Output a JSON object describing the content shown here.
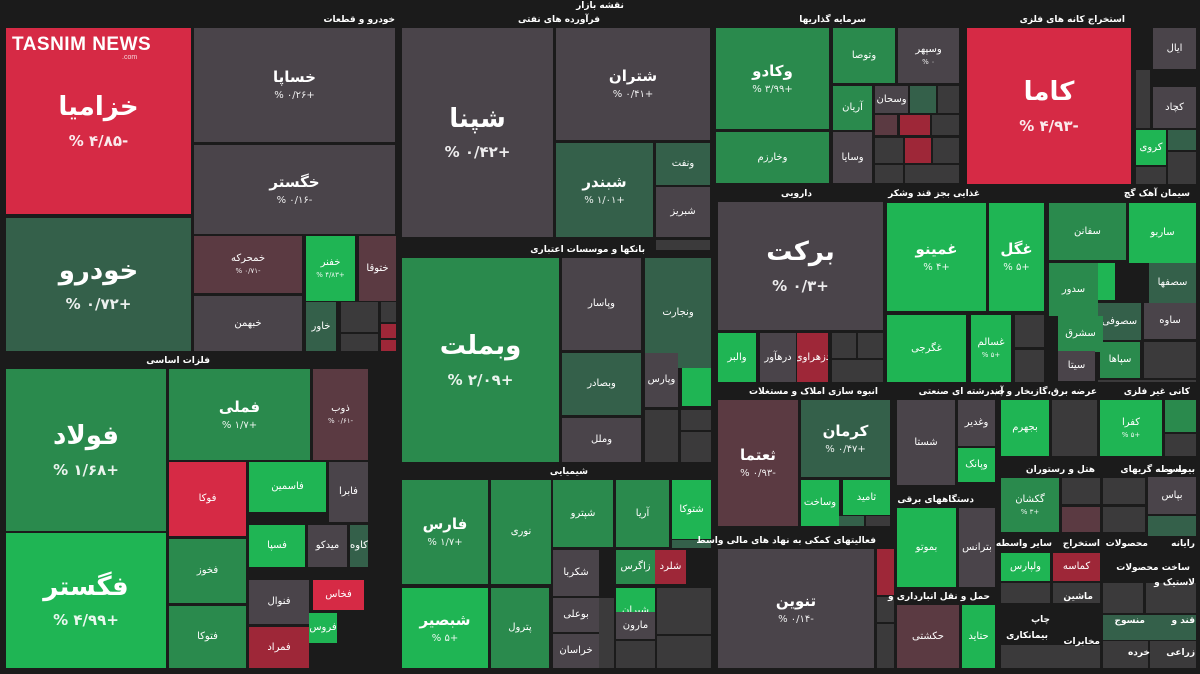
{
  "title": "نقشه بازار",
  "logo": {
    "text": "TASNIM NEWS",
    "sub": ".com"
  },
  "colors": {
    "neutral": "#4a444a",
    "pos_strong": "#1fb554",
    "pos_mid": "#2a8a4d",
    "pos_weak": "#34604a",
    "neg_strong": "#d62a45",
    "neg_mid": "#9e2738",
    "neg_weak": "#5b3a42",
    "background": "#1b1b1b"
  },
  "sectors": [
    "خودرو و قطعات",
    "فرآورده های نفتی",
    "سرمایه گذاریها",
    "استخراج کانه های فلزی",
    "فلزات اساسی",
    "بانکها و موسسات اعتباری",
    "دارویی",
    "غذایی بجز قند وشکر",
    "سیمان آهک گچ",
    "انبوه سازی املاک و مستغلات",
    "چندرشته ای صنعتی",
    "عرضه برق،گازبخار و آب",
    "کانی غیر فلزی",
    "شیمیایی",
    "فعالیتهای کمکی به نهاد های مالی واسط",
    "دستگاههای برقی",
    "هتل و رستوران",
    "واسطه گریهای",
    "بیمه و",
    "حمل و نقل انبارداری و",
    "رایانه",
    "محصولات",
    "استخراج",
    "سایر واسطه",
    "لاستیک و",
    "منسوج",
    "قند و",
    "زراعی",
    "خرده",
    "مخابرات",
    "چاپ",
    "ماشین",
    "بیمانکاری",
    "ساخت محصولات"
  ],
  "chart_data": {
    "type": "treemap",
    "title": "نقشه بازار",
    "unit": "%",
    "items": [
      {
        "sector": "خودرو و قطعات",
        "name": "خزامیا",
        "change": -4.85,
        "label": "-۴/۸۵ %"
      },
      {
        "sector": "خودرو و قطعات",
        "name": "خساپا",
        "change": 0.26,
        "label": "+۰/۲۶ %"
      },
      {
        "sector": "خودرو و قطعات",
        "name": "خگستر",
        "change": -0.16,
        "label": "-۰/۱۶ %"
      },
      {
        "sector": "خودرو و قطعات",
        "name": "خودرو",
        "change": 0.72,
        "label": "+۰/۷۲ %"
      },
      {
        "sector": "خودرو و قطعات",
        "name": "خمحرکه",
        "change": -0.71,
        "label": "-۰/۷۱ %"
      },
      {
        "sector": "خودرو و قطعات",
        "name": "خفنر",
        "change": 4.83,
        "label": "+۴/۸۳ %"
      },
      {
        "sector": "خودرو و قطعات",
        "name": "ختوقا",
        "change": -1.0,
        "label": ""
      },
      {
        "sector": "خودرو و قطعات",
        "name": "خبهمن",
        "change": 0.1,
        "label": ""
      },
      {
        "sector": "خودرو و قطعات",
        "name": "خاور",
        "change": 1.1,
        "label": ""
      },
      {
        "sector": "فرآورده های نفتی",
        "name": "شپنا",
        "change": 0.42,
        "label": "+۰/۴۲ %"
      },
      {
        "sector": "فرآورده های نفتی",
        "name": "شتران",
        "change": 0.41,
        "label": "+۰/۴۱ %"
      },
      {
        "sector": "فرآورده های نفتی",
        "name": "شبندر",
        "change": 1.01,
        "label": "+۱/۰۱ %"
      },
      {
        "sector": "فرآورده های نفتی",
        "name": "ونفت",
        "change": 1.2,
        "label": ""
      },
      {
        "sector": "فرآورده های نفتی",
        "name": "شبریز",
        "change": 0.1,
        "label": ""
      },
      {
        "sector": "سرمایه گذاریها",
        "name": "وکادو",
        "change": 3.99,
        "label": "+۳/۹۹ %"
      },
      {
        "sector": "سرمایه گذاریها",
        "name": "وتوصا",
        "change": 2.0,
        "label": ""
      },
      {
        "sector": "سرمایه گذاریها",
        "name": "وسپهر",
        "change": 0.0,
        "label": "۰ %"
      },
      {
        "sector": "سرمایه گذاریها",
        "name": "وخارزم",
        "change": 3.0,
        "label": ""
      },
      {
        "sector": "سرمایه گذاریها",
        "name": "آریان",
        "change": 2.9,
        "label": ""
      },
      {
        "sector": "سرمایه گذاریها",
        "name": "وسحان",
        "change": 0.1,
        "label": ""
      },
      {
        "sector": "سرمایه گذاریها",
        "name": "وسایا",
        "change": 0.3,
        "label": ""
      },
      {
        "sector": "استخراج کانه های فلزی",
        "name": "کاما",
        "change": -4.93,
        "label": "-۴/۹۳ %"
      },
      {
        "sector": "استخراج کانه های فلزی",
        "name": "ایال",
        "change": -0.2,
        "label": ""
      },
      {
        "sector": "استخراج کانه های فلزی",
        "name": "کچاد",
        "change": 0.1,
        "label": ""
      },
      {
        "sector": "استخراج کانه های فلزی",
        "name": "کروی",
        "change": 4.5,
        "label": ""
      },
      {
        "sector": "فلزات اساسی",
        "name": "فولاد",
        "change": 1.68,
        "label": "+۱/۶۸ %"
      },
      {
        "sector": "فلزات اساسی",
        "name": "فگستر",
        "change": 4.99,
        "label": "+۴/۹۹ %"
      },
      {
        "sector": "فلزات اساسی",
        "name": "فملی",
        "change": 1.7,
        "label": "+۱/۷ %"
      },
      {
        "sector": "فلزات اساسی",
        "name": "ذوب",
        "change": -0.61,
        "label": "-۰/۶۱ %"
      },
      {
        "sector": "فلزات اساسی",
        "name": "فوکا",
        "change": -4.99,
        "label": ""
      },
      {
        "sector": "فلزات اساسی",
        "name": "فاسمین",
        "change": 4.9,
        "label": ""
      },
      {
        "sector": "فلزات اساسی",
        "name": "فابرا",
        "change": 0.1,
        "label": ""
      },
      {
        "sector": "فلزات اساسی",
        "name": "فخوز",
        "change": 2.8,
        "label": ""
      },
      {
        "sector": "فلزات اساسی",
        "name": "فسپا",
        "change": 4.0,
        "label": ""
      },
      {
        "sector": "فلزات اساسی",
        "name": "میدکو",
        "change": 0.1,
        "label": ""
      },
      {
        "sector": "فلزات اساسی",
        "name": "کاوه",
        "change": 1.0,
        "label": ""
      },
      {
        "sector": "فلزات اساسی",
        "name": "فخاس",
        "change": -4.0,
        "label": ""
      },
      {
        "sector": "فلزات اساسی",
        "name": "فروس",
        "change": 4.0,
        "label": ""
      },
      {
        "sector": "فلزات اساسی",
        "name": "فنوال",
        "change": 0.0,
        "label": ""
      },
      {
        "sector": "فلزات اساسی",
        "name": "فمراد",
        "change": -1.6,
        "label": ""
      },
      {
        "sector": "فلزات اساسی",
        "name": "فتوکا",
        "change": 2.0,
        "label": ""
      },
      {
        "sector": "بانکها و موسسات اعتباری",
        "name": "وبملت",
        "change": 2.09,
        "label": "+۲/۰۹ %"
      },
      {
        "sector": "بانکها و موسسات اعتباری",
        "name": "وپاسار",
        "change": 0.1,
        "label": ""
      },
      {
        "sector": "بانکها و موسسات اعتباری",
        "name": "ونجارت",
        "change": 1.1,
        "label": ""
      },
      {
        "sector": "بانکها و موسسات اعتباری",
        "name": "وبصادر",
        "change": 0.7,
        "label": ""
      },
      {
        "sector": "بانکها و موسسات اعتباری",
        "name": "وپارس",
        "change": 0.1,
        "label": ""
      },
      {
        "sector": "بانکها و موسسات اعتباری",
        "name": "وملل",
        "change": 0.4,
        "label": ""
      },
      {
        "sector": "دارویی",
        "name": "برکت",
        "change": 0.3,
        "label": "+۰/۳ %"
      },
      {
        "sector": "دارویی",
        "name": "والبر",
        "change": 4.0,
        "label": ""
      },
      {
        "sector": "دارویی",
        "name": "درهآور",
        "change": 0.1,
        "label": ""
      },
      {
        "sector": "دارویی",
        "name": "دزهراوی",
        "change": -1.6,
        "label": ""
      },
      {
        "sector": "غذایی بجز قند وشکر",
        "name": "غمینو",
        "change": 4.0,
        "label": "+۴ %"
      },
      {
        "sector": "غذایی بجز قند وشکر",
        "name": "غگل",
        "change": 5.0,
        "label": "+۵ %"
      },
      {
        "sector": "غذایی بجز قند وشکر",
        "name": "غگرجی",
        "change": 4.9,
        "label": ""
      },
      {
        "sector": "غذایی بجز قند وشکر",
        "name": "غسالم",
        "change": 5.0,
        "label": "+۵ %"
      },
      {
        "sector": "سیمان آهک گچ",
        "name": "ساربو",
        "change": 4.9,
        "label": ""
      },
      {
        "sector": "سیمان آهک گچ",
        "name": "سفانن",
        "change": 3.9,
        "label": ""
      },
      {
        "sector": "سیمان آهک گچ",
        "name": "سجنو",
        "change": 4.5,
        "label": ""
      },
      {
        "sector": "سیمان آهک گچ",
        "name": "سصفها",
        "change": 0.5,
        "label": ""
      },
      {
        "sector": "سیمان آهک گچ",
        "name": "سدور",
        "change": 2.9,
        "label": ""
      },
      {
        "sector": "سیمان آهک گچ",
        "name": "سصوفی",
        "change": 0.9,
        "label": ""
      },
      {
        "sector": "سیمان آهک گچ",
        "name": "ساوه",
        "change": 0.1,
        "label": ""
      },
      {
        "sector": "سیمان آهک گچ",
        "name": "سشرق",
        "change": 2.9,
        "label": ""
      },
      {
        "sector": "سیمان آهک گچ",
        "name": "سپاها",
        "change": 3.5,
        "label": ""
      },
      {
        "sector": "سیمان آهک گچ",
        "name": "سیتا",
        "change": 0.0,
        "label": ""
      },
      {
        "sector": "شیمیایی",
        "name": "فارس",
        "change": 1.7,
        "label": "+۱/۷ %"
      },
      {
        "sector": "شیمیایی",
        "name": "شبصیر",
        "change": 5.0,
        "label": "+۵ %"
      },
      {
        "sector": "شیمیایی",
        "name": "نوری",
        "change": 3.9,
        "label": ""
      },
      {
        "sector": "شیمیایی",
        "name": "شپدیس",
        "change": 3.0,
        "label": ""
      },
      {
        "sector": "شیمیایی",
        "name": "شپترو",
        "change": 3.0,
        "label": ""
      },
      {
        "sector": "شیمیایی",
        "name": "آریا",
        "change": 3.0,
        "label": ""
      },
      {
        "sector": "شیمیایی",
        "name": "شتوکا",
        "change": 4.9,
        "label": ""
      },
      {
        "sector": "شیمیایی",
        "name": "شکربا",
        "change": 0.1,
        "label": ""
      },
      {
        "sector": "شیمیایی",
        "name": "زاگرس",
        "change": 2.5,
        "label": ""
      },
      {
        "sector": "شیمیایی",
        "name": "شلرد",
        "change": -3.0,
        "label": ""
      },
      {
        "sector": "شیمیایی",
        "name": "پترول",
        "change": 2.9,
        "label": ""
      },
      {
        "sector": "شیمیایی",
        "name": "بوعلی",
        "change": 0.2,
        "label": ""
      },
      {
        "sector": "شیمیایی",
        "name": "شیران",
        "change": 4.0,
        "label": ""
      },
      {
        "sector": "شیمیایی",
        "name": "مارون",
        "change": 0.4,
        "label": ""
      },
      {
        "sector": "شیمیایی",
        "name": "خراسان",
        "change": -0.3,
        "label": ""
      },
      {
        "sector": "انبوه سازی املاک و مستغلات",
        "name": "ثعتما",
        "change": -0.93,
        "label": "-۰/۹۳ %"
      },
      {
        "sector": "انبوه سازی املاک و مستغلات",
        "name": "کرمان",
        "change": 0.47,
        "label": "+۰/۴۷ %"
      },
      {
        "sector": "انبوه سازی املاک و مستغلات",
        "name": "وساخت",
        "change": 4.8,
        "label": ""
      },
      {
        "sector": "انبوه سازی املاک و مستغلات",
        "name": "ثامید",
        "change": 4.5,
        "label": ""
      },
      {
        "sector": "فعالیتهای کمکی به نهاد های مالی واسط",
        "name": "تنوین",
        "change": -0.14,
        "label": "-۰/۱۴ %"
      },
      {
        "sector": "چندرشته ای صنعتی",
        "name": "شستا",
        "change": 0.3,
        "label": ""
      },
      {
        "sector": "چندرشته ای صنعتی",
        "name": "وغدیر",
        "change": 0.0,
        "label": ""
      },
      {
        "sector": "چندرشته ای صنعتی",
        "name": "وپانک",
        "change": 4.8,
        "label": ""
      },
      {
        "sector": "عرضه برق،گازبخار و آب",
        "name": "بجهرم",
        "change": 4.9,
        "label": ""
      },
      {
        "sector": "کانی غیر فلزی",
        "name": "کفرا",
        "change": 5.0,
        "label": "+۵ %"
      },
      {
        "sector": "دستگاههای برقی",
        "name": "بموتو",
        "change": 4.9,
        "label": ""
      },
      {
        "sector": "دستگاههای برقی",
        "name": "بترانس",
        "change": 0.1,
        "label": ""
      },
      {
        "sector": "هتل و رستوران",
        "name": "گکشان",
        "change": 3.0,
        "label": "+۳ %"
      },
      {
        "sector": "واسطه گریهای",
        "name": "بپاس",
        "change": 0.1,
        "label": ""
      },
      {
        "sector": "حمل و نقل انبارداری و",
        "name": "حکشتی",
        "change": -0.9,
        "label": ""
      },
      {
        "sector": "حمل و نقل انبارداری و",
        "name": "حتاید",
        "change": 4.9,
        "label": ""
      },
      {
        "sector": "سایر واسطه",
        "name": "ولپارس",
        "change": 4.7,
        "label": ""
      },
      {
        "sector": "ماشین",
        "name": "کماسه",
        "change": -3.0,
        "label": ""
      }
    ]
  }
}
